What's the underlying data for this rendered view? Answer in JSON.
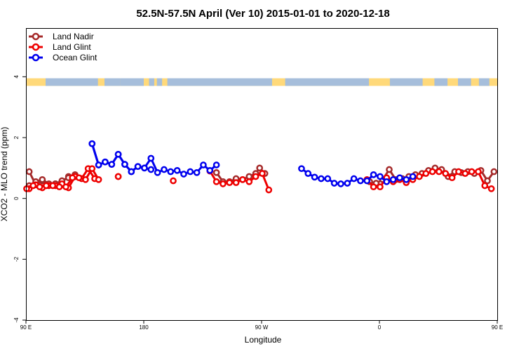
{
  "chart_data": {
    "type": "line",
    "title": "52.5N-57.5N April (Ver 10)   2015-01-01 to 2020-12-18",
    "xlabel": "Longitude",
    "ylabel": "XCO2 - MLO trend (ppm)",
    "xlim": [
      0,
      360
    ],
    "ylim": [
      -4,
      5.6
    ],
    "xticks": [
      {
        "value": 0,
        "label": "90 E"
      },
      {
        "value": 90,
        "label": "180"
      },
      {
        "value": 180,
        "label": "90 W"
      },
      {
        "value": 270,
        "label": "0"
      },
      {
        "value": 360,
        "label": "90 E"
      }
    ],
    "yticks": [
      {
        "value": -4,
        "label": "-4"
      },
      {
        "value": -2,
        "label": "-2"
      },
      {
        "value": 0,
        "label": "0"
      },
      {
        "value": 2,
        "label": "2"
      },
      {
        "value": 4,
        "label": "4"
      }
    ],
    "land_ocean_band": {
      "y_range": [
        3.7,
        3.95
      ],
      "land_color": "#FFD97A",
      "ocean_color": "#A6BEDB"
    },
    "legend_position": "top-left",
    "series": [
      {
        "name": "Land Nadir",
        "color": "#A52A2A",
        "segments": [
          [
            [
              2.5,
              0.88
            ],
            [
              7.5,
              0.45
            ],
            [
              12.5,
              0.58
            ],
            [
              17.5,
              0.45
            ],
            [
              22.5,
              0.48
            ],
            [
              27.5,
              0.55
            ],
            [
              32.5,
              0.72
            ],
            [
              37.5,
              0.78
            ]
          ],
          [
            [
              145.5,
              0.85
            ],
            [
              150.5,
              0.55
            ],
            [
              155.5,
              0.55
            ],
            [
              160.5,
              0.65
            ],
            [
              165.5,
              0.62
            ],
            [
              170.5,
              0.72
            ],
            [
              175.5,
              0.82
            ],
            [
              178.5,
              1.0
            ],
            [
              182.5,
              0.82
            ]
          ],
          [
            [
              262.5,
              0.55
            ],
            [
              267.5,
              0.5
            ],
            [
              272.5,
              0.62
            ],
            [
              277.5,
              0.95
            ],
            [
              282.5,
              0.62
            ],
            [
              287.5,
              0.65
            ],
            [
              292.5,
              0.72
            ],
            [
              297.5,
              0.78
            ],
            [
              302.5,
              0.82
            ],
            [
              307.5,
              0.92
            ],
            [
              312.5,
              1.0
            ],
            [
              317.5,
              0.95
            ],
            [
              322.5,
              0.72
            ],
            [
              327.5,
              0.88
            ],
            [
              332.5,
              0.85
            ],
            [
              337.5,
              0.88
            ],
            [
              342.5,
              0.82
            ],
            [
              347.5,
              0.92
            ],
            [
              352.5,
              0.58
            ],
            [
              357.5,
              0.88
            ]
          ],
          [
            [
              2.5,
              0.42
            ],
            [
              7.5,
              0.55
            ],
            [
              12.5,
              0.62
            ],
            [
              17.5,
              0.48
            ],
            [
              22.5,
              0.48
            ],
            [
              27.5,
              0.58
            ],
            [
              32.5,
              0.68
            ],
            [
              37.5,
              0.72
            ]
          ]
        ]
      },
      {
        "name": "Land Glint",
        "color": "#EE0000",
        "segments": [
          [
            [
              2.5,
              0.32
            ],
            [
              7.5,
              0.45
            ],
            [
              12.5,
              0.35
            ],
            [
              17.5,
              0.42
            ],
            [
              22.5,
              0.42
            ],
            [
              27.5,
              0.48
            ],
            [
              32.5,
              0.35
            ],
            [
              37.5,
              0.72
            ],
            [
              42.5,
              0.65
            ],
            [
              47.5,
              0.98
            ],
            [
              52.5,
              0.65
            ]
          ],
          [
            [
              70.5,
              0.72
            ]
          ],
          [
            [
              112.5,
              0.58
            ]
          ],
          [
            [
              140.5,
              0.9
            ],
            [
              145.5,
              0.55
            ],
            [
              150.5,
              0.48
            ],
            [
              155.5,
              0.52
            ],
            [
              160.5,
              0.52
            ],
            [
              165.5,
              0.62
            ],
            [
              170.5,
              0.55
            ],
            [
              175.5,
              0.72
            ],
            [
              180.5,
              0.82
            ],
            [
              185.5,
              0.28
            ]
          ],
          [
            [
              260.5,
              0.62
            ],
            [
              265.5,
              0.38
            ],
            [
              270.5,
              0.38
            ],
            [
              275.5,
              0.68
            ],
            [
              280.5,
              0.55
            ],
            [
              285.5,
              0.62
            ],
            [
              290.5,
              0.52
            ],
            [
              295.5,
              0.62
            ],
            [
              300.5,
              0.72
            ],
            [
              305.5,
              0.82
            ],
            [
              310.5,
              0.88
            ],
            [
              315.5,
              0.88
            ],
            [
              320.5,
              0.82
            ],
            [
              325.5,
              0.68
            ],
            [
              330.5,
              0.88
            ],
            [
              335.5,
              0.82
            ],
            [
              340.5,
              0.88
            ],
            [
              345.5,
              0.88
            ],
            [
              350.5,
              0.42
            ],
            [
              355.5,
              0.32
            ]
          ],
          [
            [
              0.5,
              0.32
            ],
            [
              5.5,
              0.42
            ],
            [
              10.5,
              0.38
            ],
            [
              15.5,
              0.42
            ],
            [
              20.5,
              0.42
            ],
            [
              25.5,
              0.38
            ],
            [
              30.5,
              0.38
            ],
            [
              35.5,
              0.68
            ],
            [
              40.5,
              0.68
            ],
            [
              45.5,
              0.62
            ],
            [
              50.5,
              0.98
            ],
            [
              55.5,
              0.62
            ]
          ],
          [
            [
              70.5,
              0.72
            ]
          ]
        ]
      },
      {
        "name": "Ocean Glint",
        "color": "#0000EE",
        "segments": [
          [
            [
              50.5,
              1.8
            ],
            [
              55.5,
              1.1
            ],
            [
              60.5,
              1.2
            ],
            [
              65.5,
              1.12
            ],
            [
              70.5,
              1.45
            ],
            [
              75.5,
              1.12
            ],
            [
              80.5,
              0.88
            ],
            [
              85.5,
              1.05
            ],
            [
              90.5,
              1.0
            ],
            [
              95.5,
              1.32
            ],
            [
              100.5,
              0.85
            ],
            [
              105.5,
              0.95
            ],
            [
              110.5,
              0.88
            ],
            [
              115.5,
              0.92
            ],
            [
              120.5,
              0.8
            ],
            [
              125.5,
              0.88
            ],
            [
              130.5,
              0.85
            ],
            [
              135.5,
              1.1
            ],
            [
              140.5,
              0.92
            ],
            [
              145.5,
              1.1
            ]
          ],
          [
            [
              210.5,
              0.98
            ],
            [
              215.5,
              0.82
            ],
            [
              220.5,
              0.7
            ],
            [
              225.5,
              0.65
            ],
            [
              230.5,
              0.65
            ],
            [
              235.5,
              0.5
            ],
            [
              240.5,
              0.48
            ],
            [
              245.5,
              0.5
            ],
            [
              250.5,
              0.65
            ],
            [
              255.5,
              0.58
            ],
            [
              260.5,
              0.58
            ],
            [
              265.5,
              0.78
            ],
            [
              270.5,
              0.72
            ],
            [
              275.5,
              0.55
            ],
            [
              280.5,
              0.62
            ],
            [
              285.5,
              0.68
            ],
            [
              290.5,
              0.62
            ],
            [
              295.5,
              0.72
            ]
          ],
          [
            [
              50.5,
              1.8
            ],
            [
              55.5,
              1.1
            ],
            [
              60.5,
              1.2
            ],
            [
              65.5,
              1.12
            ],
            [
              70.5,
              1.45
            ],
            [
              75.5,
              1.12
            ],
            [
              80.5,
              0.88
            ],
            [
              85.5,
              1.05
            ],
            [
              90.5,
              1.0
            ],
            [
              95.5,
              0.95
            ]
          ]
        ]
      }
    ]
  }
}
